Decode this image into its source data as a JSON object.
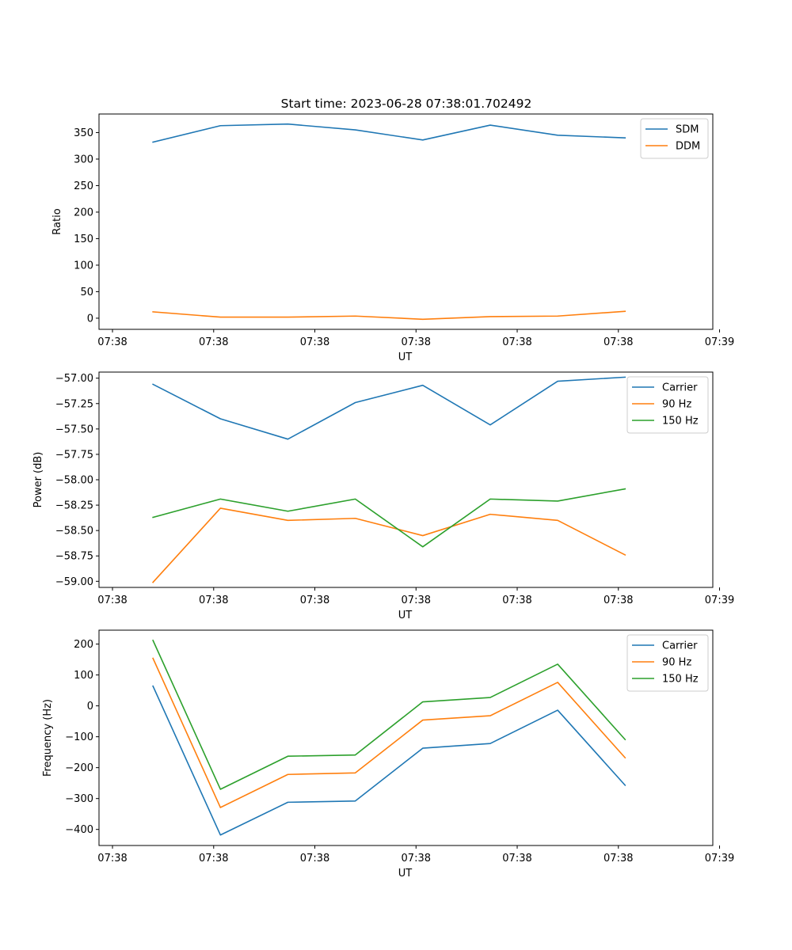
{
  "figure": {
    "title": "Start time: 2023-06-28 07:38:01.702492"
  },
  "chart_data": [
    {
      "type": "line",
      "ylabel": "Ratio",
      "xlabel": "UT",
      "x_ticks": [
        "07:38",
        "07:38",
        "07:38",
        "07:38",
        "07:38",
        "07:38",
        "07:39"
      ],
      "x_points": [
        1,
        2,
        3,
        4,
        5,
        6,
        7,
        8
      ],
      "x_range": [
        0.2,
        9.3
      ],
      "x_tick_positions": [
        0.4,
        1.9,
        3.4,
        4.9,
        6.4,
        7.9,
        9.4
      ],
      "ylim": [
        -21,
        385
      ],
      "y_ticks": [
        0,
        50,
        100,
        150,
        200,
        250,
        300,
        350
      ],
      "legend": "top-right",
      "series": [
        {
          "name": "SDM",
          "color": "#1f77b4",
          "values": [
            332,
            363,
            366,
            355,
            336,
            364,
            345,
            340
          ]
        },
        {
          "name": "DDM",
          "color": "#ff7f0e",
          "values": [
            12,
            2,
            2,
            4,
            -2,
            3,
            4,
            13
          ]
        }
      ]
    },
    {
      "type": "line",
      "ylabel": "Power (dB)",
      "xlabel": "UT",
      "x_ticks": [
        "07:38",
        "07:38",
        "07:38",
        "07:38",
        "07:38",
        "07:38",
        "07:39"
      ],
      "x_points": [
        1,
        2,
        3,
        4,
        5,
        6,
        7,
        8
      ],
      "x_range": [
        0.2,
        9.3
      ],
      "x_tick_positions": [
        0.4,
        1.9,
        3.4,
        4.9,
        6.4,
        7.9,
        9.4
      ],
      "ylim": [
        -59.06,
        -56.94
      ],
      "y_ticks": [
        -59.0,
        -58.75,
        -58.5,
        -58.25,
        -58.0,
        -57.75,
        -57.5,
        -57.25,
        -57.0
      ],
      "y_tick_labels": [
        "−59.00",
        "−58.75",
        "−58.50",
        "−58.25",
        "−58.00",
        "−57.75",
        "−57.50",
        "−57.25",
        "−57.00"
      ],
      "legend": "top-right",
      "series": [
        {
          "name": "Carrier",
          "color": "#1f77b4",
          "values": [
            -57.06,
            -57.4,
            -57.6,
            -57.24,
            -57.07,
            -57.46,
            -57.03,
            -56.99
          ]
        },
        {
          "name": "90 Hz",
          "color": "#ff7f0e",
          "values": [
            -59.01,
            -58.28,
            -58.4,
            -58.38,
            -58.55,
            -58.34,
            -58.4,
            -58.74
          ]
        },
        {
          "name": "150 Hz",
          "color": "#2ca02c",
          "values": [
            -58.37,
            -58.19,
            -58.31,
            -58.19,
            -58.66,
            -58.19,
            -58.21,
            -58.09
          ]
        }
      ]
    },
    {
      "type": "line",
      "ylabel": "Frequency (Hz)",
      "xlabel": "UT",
      "x_ticks": [
        "07:38",
        "07:38",
        "07:38",
        "07:38",
        "07:38",
        "07:38",
        "07:39"
      ],
      "x_points": [
        1,
        2,
        3,
        4,
        5,
        6,
        7,
        8
      ],
      "x_range": [
        0.2,
        9.3
      ],
      "x_tick_positions": [
        0.4,
        1.9,
        3.4,
        4.9,
        6.4,
        7.9,
        9.4
      ],
      "ylim": [
        -452,
        245
      ],
      "y_ticks": [
        -400,
        -300,
        -200,
        -100,
        0,
        100,
        200
      ],
      "y_tick_labels": [
        "−400",
        "−300",
        "−200",
        "−100",
        "0",
        "100",
        "200"
      ],
      "legend": "top-right",
      "series": [
        {
          "name": "Carrier",
          "color": "#1f77b4",
          "values": [
            64,
            -418,
            -312,
            -308,
            -137,
            -122,
            -14,
            -257
          ]
        },
        {
          "name": "90 Hz",
          "color": "#ff7f0e",
          "values": [
            154,
            -329,
            -222,
            -217,
            -46,
            -32,
            76,
            -168
          ]
        },
        {
          "name": "150 Hz",
          "color": "#2ca02c",
          "values": [
            212,
            -270,
            -163,
            -159,
            13,
            27,
            135,
            -109
          ]
        }
      ]
    }
  ]
}
